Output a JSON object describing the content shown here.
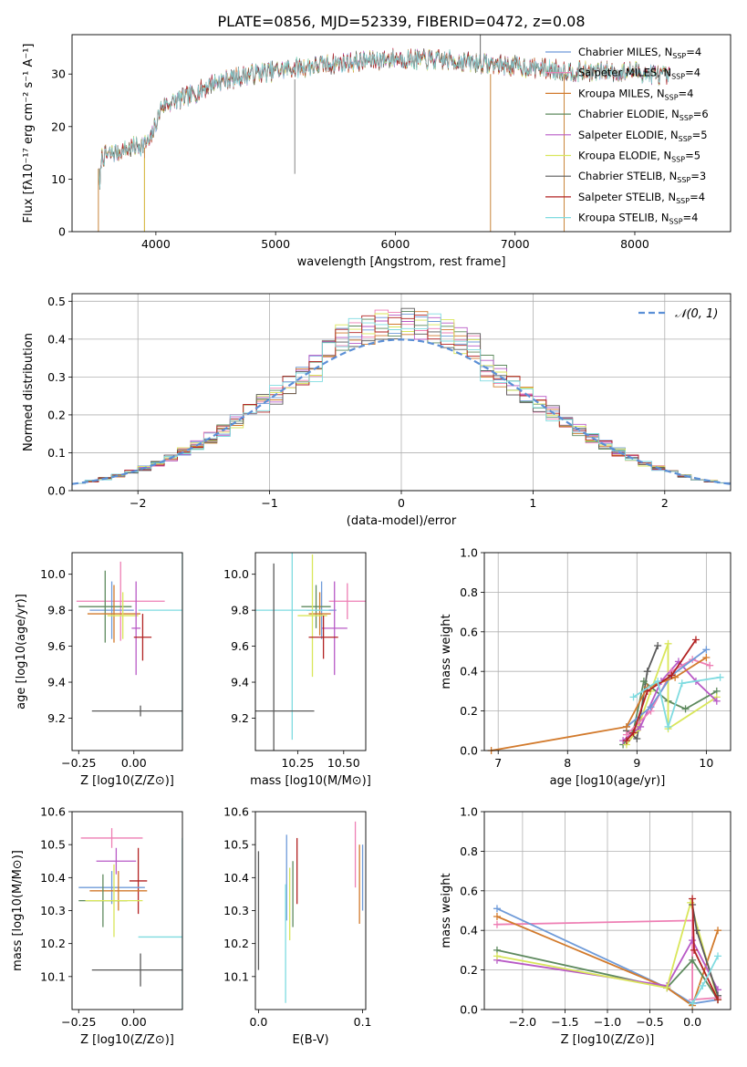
{
  "figure_title": "PLATE=0856, MJD=52339, FIBERID=0472, z=0.08",
  "colors": {
    "chabrier_miles": "#6f9bd9",
    "salpeter_miles": "#ee7fb4",
    "kroupa_miles": "#d27a2c",
    "chabrier_elodie": "#5e8a5e",
    "salpeter_elodie": "#b85ac6",
    "kroupa_elodie": "#d9e65a",
    "chabrier_stelib": "#5a5a5a",
    "salpeter_stelib": "#b22222",
    "kroupa_stelib": "#7fdbe0",
    "gaussian": "#5b8fd6"
  },
  "chart_data": [
    {
      "id": "spectrum",
      "type": "line",
      "title": "PLATE=0856, MJD=52339, FIBERID=0472, z=0.08",
      "xlabel": "wavelength [Angstrom, rest frame]",
      "ylabel": "Flux [fλ10⁻¹⁷ erg cm⁻² s⁻¹ A⁻¹]",
      "xlim": [
        3300,
        8800
      ],
      "ylim": [
        0,
        37.5
      ],
      "xticks": [
        4000,
        5000,
        6000,
        7000,
        8000
      ],
      "yticks": [
        0,
        10,
        20,
        30
      ],
      "grid": false,
      "legend_position": "right",
      "series": [
        {
          "name": "Chabrier MILES, N_SSP=4",
          "color_key": "chabrier_miles"
        },
        {
          "name": "Salpeter MILES, N_SSP=4",
          "color_key": "salpeter_miles"
        },
        {
          "name": "Kroupa MILES, N_SSP=4",
          "color_key": "kroupa_miles"
        },
        {
          "name": "Chabrier ELODIE, N_SSP=6",
          "color_key": "chabrier_elodie"
        },
        {
          "name": "Salpeter ELODIE, N_SSP=5",
          "color_key": "salpeter_elodie"
        },
        {
          "name": "Kroupa ELODIE, N_SSP=5",
          "color_key": "kroupa_elodie"
        },
        {
          "name": "Chabrier STELIB, N_SSP=3",
          "color_key": "chabrier_stelib"
        },
        {
          "name": "Salpeter STELIB, N_SSP=4",
          "color_key": "salpeter_stelib"
        },
        {
          "name": "Kroupa STELIB, N_SSP=4",
          "color_key": "kroupa_stelib"
        }
      ],
      "continuum": [
        [
          3520,
          14
        ],
        [
          3800,
          16
        ],
        [
          3950,
          17
        ],
        [
          4050,
          24
        ],
        [
          4300,
          26
        ],
        [
          4500,
          28.5
        ],
        [
          4800,
          30
        ],
        [
          5100,
          31
        ],
        [
          5500,
          32
        ],
        [
          6000,
          33
        ],
        [
          6500,
          32.5
        ],
        [
          7000,
          31.5
        ],
        [
          7500,
          30.5
        ],
        [
          8000,
          30.5
        ],
        [
          8300,
          29.5
        ]
      ]
    },
    {
      "id": "residuals",
      "type": "line",
      "xlabel": "(data-model)/error",
      "ylabel": "Normed distribution",
      "xlim": [
        -2.5,
        2.5
      ],
      "ylim": [
        0,
        0.52
      ],
      "xticks": [
        -2,
        -1,
        0,
        1,
        2
      ],
      "yticks": [
        0.0,
        0.1,
        0.2,
        0.3,
        0.4,
        0.5
      ],
      "grid": true,
      "legend_position": "top-right",
      "legend": "𝒩(0, 1)",
      "gaussian": {
        "mu": 0,
        "sigma": 1
      }
    },
    {
      "id": "age_vs_Z",
      "type": "scatter",
      "xlabel": "Z [log10(Z/Z⊙)]",
      "ylabel": "age  [log10(age/yr)]",
      "xlim": [
        -0.28,
        0.22
      ],
      "ylim": [
        9.02,
        10.12
      ],
      "xticks": [
        -0.25,
        0.0
      ],
      "yticks": [
        9.2,
        9.4,
        9.6,
        9.8,
        10.0
      ],
      "points": [
        {
          "key": "salpeter_miles",
          "x": -0.06,
          "xerr": 0.2,
          "y": 9.85,
          "yerr": 0.22
        },
        {
          "key": "chabrier_miles",
          "x": -0.1,
          "xerr": 0.1,
          "y": 9.8,
          "yerr": 0.16
        },
        {
          "key": "chabrier_elodie",
          "x": -0.13,
          "xerr": 0.12,
          "y": 9.82,
          "yerr": 0.2
        },
        {
          "key": "kroupa_miles",
          "x": -0.09,
          "xerr": 0.12,
          "y": 9.78,
          "yerr": 0.16
        },
        {
          "key": "kroupa_elodie",
          "x": -0.05,
          "xerr": 0.07,
          "y": 9.77,
          "yerr": 0.13
        },
        {
          "key": "salpeter_elodie",
          "x": 0.01,
          "xerr": 0.02,
          "y": 9.7,
          "yerr": 0.26
        },
        {
          "key": "salpeter_stelib",
          "x": 0.04,
          "xerr": 0.04,
          "y": 9.65,
          "yerr": 0.13
        },
        {
          "key": "kroupa_stelib",
          "x": 0.22,
          "xerr": 0.2,
          "y": 9.8,
          "yerr": 0.72
        },
        {
          "key": "chabrier_stelib",
          "x": 0.03,
          "xerr": 0.22,
          "y": 9.24,
          "yerr": 0.03
        }
      ]
    },
    {
      "id": "age_vs_mass",
      "type": "scatter",
      "xlabel": "mass [log10(M/M⊙)]",
      "xlim": [
        10.02,
        10.62
      ],
      "ylim": [
        9.02,
        10.12
      ],
      "xticks": [
        10.25,
        10.5
      ],
      "yticks": [
        9.2,
        9.4,
        9.6,
        9.8,
        10.0
      ],
      "points": [
        {
          "key": "salpeter_miles",
          "x": 10.52,
          "xerr": 0.1,
          "y": 9.85,
          "yerr": 0.1
        },
        {
          "key": "chabrier_miles",
          "x": 10.38,
          "xerr": 0.08,
          "y": 9.8,
          "yerr": 0.16
        },
        {
          "key": "chabrier_elodie",
          "x": 10.35,
          "xerr": 0.08,
          "y": 9.82,
          "yerr": 0.12
        },
        {
          "key": "kroupa_miles",
          "x": 10.37,
          "xerr": 0.06,
          "y": 9.78,
          "yerr": 0.12
        },
        {
          "key": "kroupa_elodie",
          "x": 10.33,
          "xerr": 0.08,
          "y": 9.77,
          "yerr": 0.34
        },
        {
          "key": "salpeter_elodie",
          "x": 10.45,
          "xerr": 0.07,
          "y": 9.7,
          "yerr": 0.26
        },
        {
          "key": "salpeter_stelib",
          "x": 10.39,
          "xerr": 0.08,
          "y": 9.65,
          "yerr": 0.12
        },
        {
          "key": "kroupa_stelib",
          "x": 10.22,
          "xerr": 0.2,
          "y": 9.8,
          "yerr": 0.72
        },
        {
          "key": "chabrier_stelib",
          "x": 10.12,
          "xerr": 0.22,
          "y": 9.24,
          "yerr": 0.82
        }
      ]
    },
    {
      "id": "massweight_vs_age",
      "type": "line",
      "xlabel": "age  [log10(age/yr)]",
      "ylabel": "mass weight",
      "xlim": [
        6.8,
        10.35
      ],
      "ylim": [
        0,
        1.0
      ],
      "xticks": [
        7,
        8,
        9,
        10
      ],
      "yticks": [
        0.0,
        0.2,
        0.4,
        0.6,
        0.8,
        1.0
      ],
      "grid": true,
      "series": [
        {
          "key": "chabrier_stelib",
          "points": [
            [
              8.85,
              0.1
            ],
            [
              9.0,
              0.06
            ],
            [
              9.15,
              0.4
            ],
            [
              9.3,
              0.53
            ]
          ]
        },
        {
          "key": "chabrier_elodie",
          "points": [
            [
              8.8,
              0.03
            ],
            [
              8.95,
              0.1
            ],
            [
              9.1,
              0.35
            ],
            [
              9.45,
              0.25
            ],
            [
              9.7,
              0.21
            ],
            [
              10.15,
              0.3
            ]
          ]
        },
        {
          "key": "kroupa_elodie",
          "points": [
            [
              8.85,
              0.03
            ],
            [
              9.0,
              0.1
            ],
            [
              9.2,
              0.3
            ],
            [
              9.45,
              0.54
            ],
            [
              9.45,
              0.11
            ],
            [
              10.15,
              0.27
            ]
          ]
        },
        {
          "key": "salpeter_elodie",
          "points": [
            [
              8.8,
              0.05
            ],
            [
              9.05,
              0.12
            ],
            [
              9.35,
              0.35
            ],
            [
              9.6,
              0.45
            ],
            [
              9.85,
              0.35
            ],
            [
              10.15,
              0.25
            ]
          ]
        },
        {
          "key": "salpeter_miles",
          "points": [
            [
              8.85,
              0.08
            ],
            [
              9.2,
              0.2
            ],
            [
              9.5,
              0.4
            ],
            [
              9.8,
              0.46
            ],
            [
              10.05,
              0.43
            ]
          ]
        },
        {
          "key": "chabrier_miles",
          "points": [
            [
              8.85,
              0.12
            ],
            [
              9.2,
              0.22
            ],
            [
              9.5,
              0.38
            ],
            [
              10.0,
              0.51
            ]
          ]
        },
        {
          "key": "kroupa_miles",
          "points": [
            [
              6.9,
              0.0
            ],
            [
              8.85,
              0.12
            ],
            [
              9.15,
              0.32
            ],
            [
              9.55,
              0.37
            ],
            [
              10.0,
              0.47
            ]
          ]
        },
        {
          "key": "salpeter_stelib",
          "points": [
            [
              8.85,
              0.05
            ],
            [
              8.95,
              0.09
            ],
            [
              9.15,
              0.3
            ],
            [
              9.5,
              0.38
            ],
            [
              9.85,
              0.56
            ]
          ]
        },
        {
          "key": "kroupa_stelib",
          "points": [
            [
              8.95,
              0.27
            ],
            [
              9.3,
              0.35
            ],
            [
              9.45,
              0.12
            ],
            [
              9.65,
              0.34
            ],
            [
              10.2,
              0.37
            ]
          ]
        }
      ]
    },
    {
      "id": "mass_vs_Z",
      "type": "scatter",
      "xlabel": "Z [log10(Z/Z⊙)]",
      "ylabel": "mass [log10(M/M⊙)]",
      "xlim": [
        -0.28,
        0.22
      ],
      "ylim": [
        10.0,
        10.6
      ],
      "xticks": [
        -0.25,
        0.0
      ],
      "yticks": [
        10.1,
        10.2,
        10.3,
        10.4,
        10.5,
        10.6
      ],
      "points": [
        {
          "key": "salpeter_miles",
          "x": -0.1,
          "xerr": 0.14,
          "y": 10.52,
          "yerr": 0.03
        },
        {
          "key": "salpeter_elodie",
          "x": -0.08,
          "xerr": 0.09,
          "y": 10.45,
          "yerr": 0.04
        },
        {
          "key": "salpeter_stelib",
          "x": 0.02,
          "xerr": 0.04,
          "y": 10.39,
          "yerr": 0.1
        },
        {
          "key": "chabrier_miles",
          "x": -0.1,
          "xerr": 0.15,
          "y": 10.37,
          "yerr": 0.05
        },
        {
          "key": "kroupa_miles",
          "x": -0.07,
          "xerr": 0.13,
          "y": 10.36,
          "yerr": 0.06
        },
        {
          "key": "chabrier_elodie",
          "x": -0.14,
          "xerr": 0.11,
          "y": 10.33,
          "yerr": 0.08
        },
        {
          "key": "kroupa_elodie",
          "x": -0.09,
          "xerr": 0.13,
          "y": 10.33,
          "yerr": 0.11
        },
        {
          "key": "kroupa_stelib",
          "x": 0.22,
          "xerr": 0.2,
          "y": 10.22,
          "yerr": 0.3
        },
        {
          "key": "chabrier_stelib",
          "x": 0.03,
          "xerr": 0.22,
          "y": 10.12,
          "yerr": 0.05
        }
      ]
    },
    {
      "id": "mass_vs_ebv",
      "type": "scatter",
      "xlabel": "E(B-V)",
      "xlim": [
        -0.003,
        0.103
      ],
      "ylim": [
        10.0,
        10.6
      ],
      "xticks": [
        0.0,
        0.1
      ],
      "yticks": [
        10.1,
        10.2,
        10.3,
        10.4,
        10.5,
        10.6
      ],
      "points": [
        {
          "key": "chabrier_stelib",
          "x": 0.0,
          "y": 10.3,
          "yerr": 0.18
        },
        {
          "key": "chabrier_miles",
          "x": 0.027,
          "y": 10.4,
          "yerr": 0.13
        },
        {
          "key": "kroupa_stelib",
          "x": 0.026,
          "y": 10.2,
          "yerr": 0.18
        },
        {
          "key": "chabrier_elodie",
          "x": 0.033,
          "y": 10.35,
          "yerr": 0.1
        },
        {
          "key": "kroupa_elodie",
          "x": 0.03,
          "y": 10.32,
          "yerr": 0.11
        },
        {
          "key": "salpeter_stelib",
          "x": 0.037,
          "y": 10.42,
          "yerr": 0.1
        },
        {
          "key": "salpeter_miles",
          "x": 0.093,
          "y": 10.47,
          "yerr": 0.1
        },
        {
          "key": "kroupa_miles",
          "x": 0.097,
          "y": 10.38,
          "yerr": 0.12
        },
        {
          "key": "chabrier_miles",
          "x": 0.1,
          "y": 10.4,
          "yerr": 0.1
        }
      ]
    },
    {
      "id": "massweight_vs_Z",
      "type": "line",
      "xlabel": "Z [log10(Z/Z⊙)]",
      "ylabel": "mass weight",
      "xlim": [
        -2.45,
        0.45
      ],
      "ylim": [
        0,
        1.0
      ],
      "xticks": [
        -2.0,
        -1.5,
        -1.0,
        -0.5,
        0.0
      ],
      "yticks": [
        0.0,
        0.2,
        0.4,
        0.6,
        0.8,
        1.0
      ],
      "grid": true,
      "series": [
        {
          "key": "salpeter_miles",
          "points": [
            [
              -2.3,
              0.43
            ],
            [
              0.0,
              0.45
            ],
            [
              0.0,
              0.05
            ],
            [
              0.3,
              0.06
            ]
          ]
        },
        {
          "key": "chabrier_miles",
          "points": [
            [
              -2.3,
              0.51
            ],
            [
              -0.3,
              0.11
            ],
            [
              0.0,
              0.03
            ],
            [
              0.3,
              0.05
            ]
          ]
        },
        {
          "key": "kroupa_miles",
          "points": [
            [
              -2.3,
              0.47
            ],
            [
              -0.3,
              0.11
            ],
            [
              0.0,
              0.02
            ],
            [
              0.3,
              0.4
            ]
          ]
        },
        {
          "key": "chabrier_elodie",
          "points": [
            [
              -2.3,
              0.3
            ],
            [
              -0.3,
              0.11
            ],
            [
              0.0,
              0.25
            ],
            [
              0.3,
              0.05
            ]
          ]
        },
        {
          "key": "salpeter_elodie",
          "points": [
            [
              -2.3,
              0.25
            ],
            [
              -0.3,
              0.12
            ],
            [
              0.0,
              0.35
            ],
            [
              0.3,
              0.1
            ]
          ]
        },
        {
          "key": "kroupa_elodie",
          "points": [
            [
              -2.3,
              0.27
            ],
            [
              -0.3,
              0.11
            ],
            [
              -0.02,
              0.54
            ],
            [
              0.3,
              0.05
            ]
          ]
        },
        {
          "key": "chabrier_stelib",
          "points": [
            [
              0.0,
              0.53
            ],
            [
              0.05,
              0.4
            ],
            [
              0.3,
              0.07
            ]
          ]
        },
        {
          "key": "salpeter_stelib",
          "points": [
            [
              0.0,
              0.56
            ],
            [
              0.02,
              0.3
            ],
            [
              0.3,
              0.05
            ]
          ]
        },
        {
          "key": "kroupa_stelib",
          "points": [
            [
              0.0,
              0.03
            ],
            [
              0.12,
              0.12
            ],
            [
              0.3,
              0.27
            ]
          ]
        }
      ]
    }
  ]
}
